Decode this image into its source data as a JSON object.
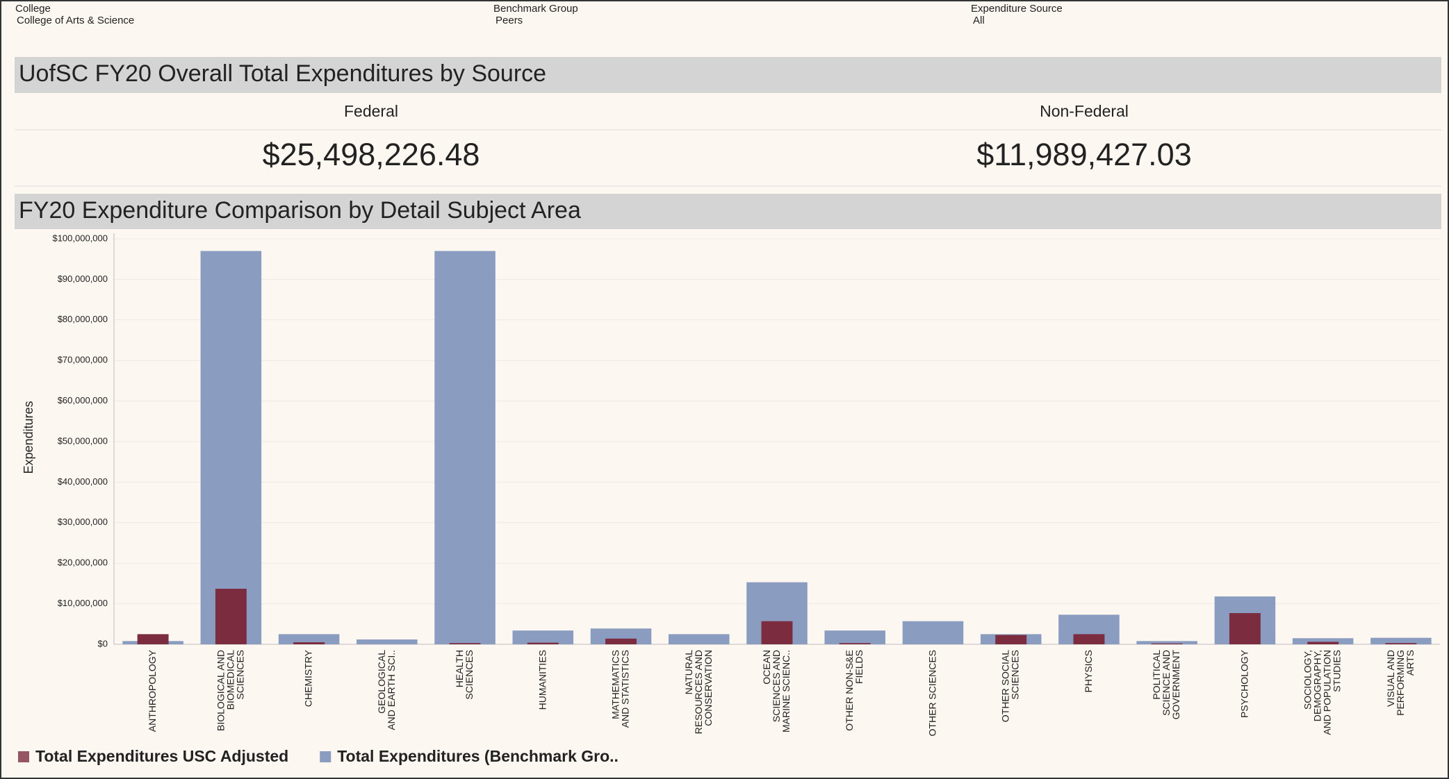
{
  "filters": [
    {
      "label": "College",
      "value": "College of Arts & Science"
    },
    {
      "label": "Benchmark Group",
      "value": "Peers"
    },
    {
      "label": "Expenditure Source",
      "value": "All"
    }
  ],
  "section1": {
    "title": "UofSC FY20 Overall Total Expenditures by Source",
    "kpis": [
      {
        "label": "Federal",
        "value": "$25,498,226.48"
      },
      {
        "label": "Non-Federal",
        "value": "$11,989,427.03"
      }
    ]
  },
  "chart_data": {
    "type": "bar",
    "title": "FY20 Expenditure Comparison by Detail Subject Area",
    "y_label": "Expenditures",
    "categories": [
      "ANTHROPOLOGY",
      "BIOLOGICAL AND\nBIOMEDICAL\nSCIENCES",
      "CHEMISTRY",
      "GEOLOGICAL\nAND EARTH SCI..",
      "HEALTH\nSCIENCES",
      "HUMANITIES",
      "MATHEMATICS\nAND STATISTICS",
      "NATURAL\nRESOURCES AND\nCONSERVATION",
      "OCEAN\nSCIENCES AND\nMARINE SCIENC..",
      "OTHER NON-S&E\nFIELDS",
      "OTHER SCIENCES",
      "OTHER SOCIAL\nSCIENCES",
      "PHYSICS",
      "POLITICAL\nSCIENCE AND\nGOVERNMENT",
      "PSYCHOLOGY",
      "SOCIOLOGY,\nDEMOGRAPHY,\nAND POPULATION\nSTUDIES",
      "VISUAL AND\nPERFORMING\nARTS"
    ],
    "series": [
      {
        "name": "Total Expenditures (Benchmark Gro..",
        "color": "#8a9cbf",
        "values": [
          800000,
          97000000,
          2500000,
          1200000,
          97000000,
          3400000,
          3900000,
          2500000,
          15300000,
          3400000,
          5700000,
          2500000,
          7300000,
          800000,
          11800000,
          1500000,
          1600000
        ]
      },
      {
        "name": "Total Expenditures USC Adjusted",
        "color": "#7b2c3f",
        "values": [
          2500000,
          13700000,
          500000,
          0,
          300000,
          400000,
          1400000,
          0,
          5700000,
          300000,
          0,
          2300000,
          2500000,
          200000,
          7700000,
          600000,
          300000
        ]
      }
    ],
    "legend_order": [
      1,
      0
    ],
    "ylim": [
      0,
      100000000
    ],
    "yticks": [
      {
        "value": 0,
        "label": "$0"
      },
      {
        "value": 10000000,
        "label": "$10,000,000"
      },
      {
        "value": 20000000,
        "label": "$20,000,000"
      },
      {
        "value": 30000000,
        "label": "$30,000,000"
      },
      {
        "value": 40000000,
        "label": "$40,000,000"
      },
      {
        "value": 50000000,
        "label": "$50,000,000"
      },
      {
        "value": 60000000,
        "label": "$60,000,000"
      },
      {
        "value": 70000000,
        "label": "$70,000,000"
      },
      {
        "value": 80000000,
        "label": "$80,000,000"
      },
      {
        "value": 90000000,
        "label": "$90,000,000"
      },
      {
        "value": 100000000,
        "label": "$100,000,000"
      }
    ],
    "grid": true
  }
}
